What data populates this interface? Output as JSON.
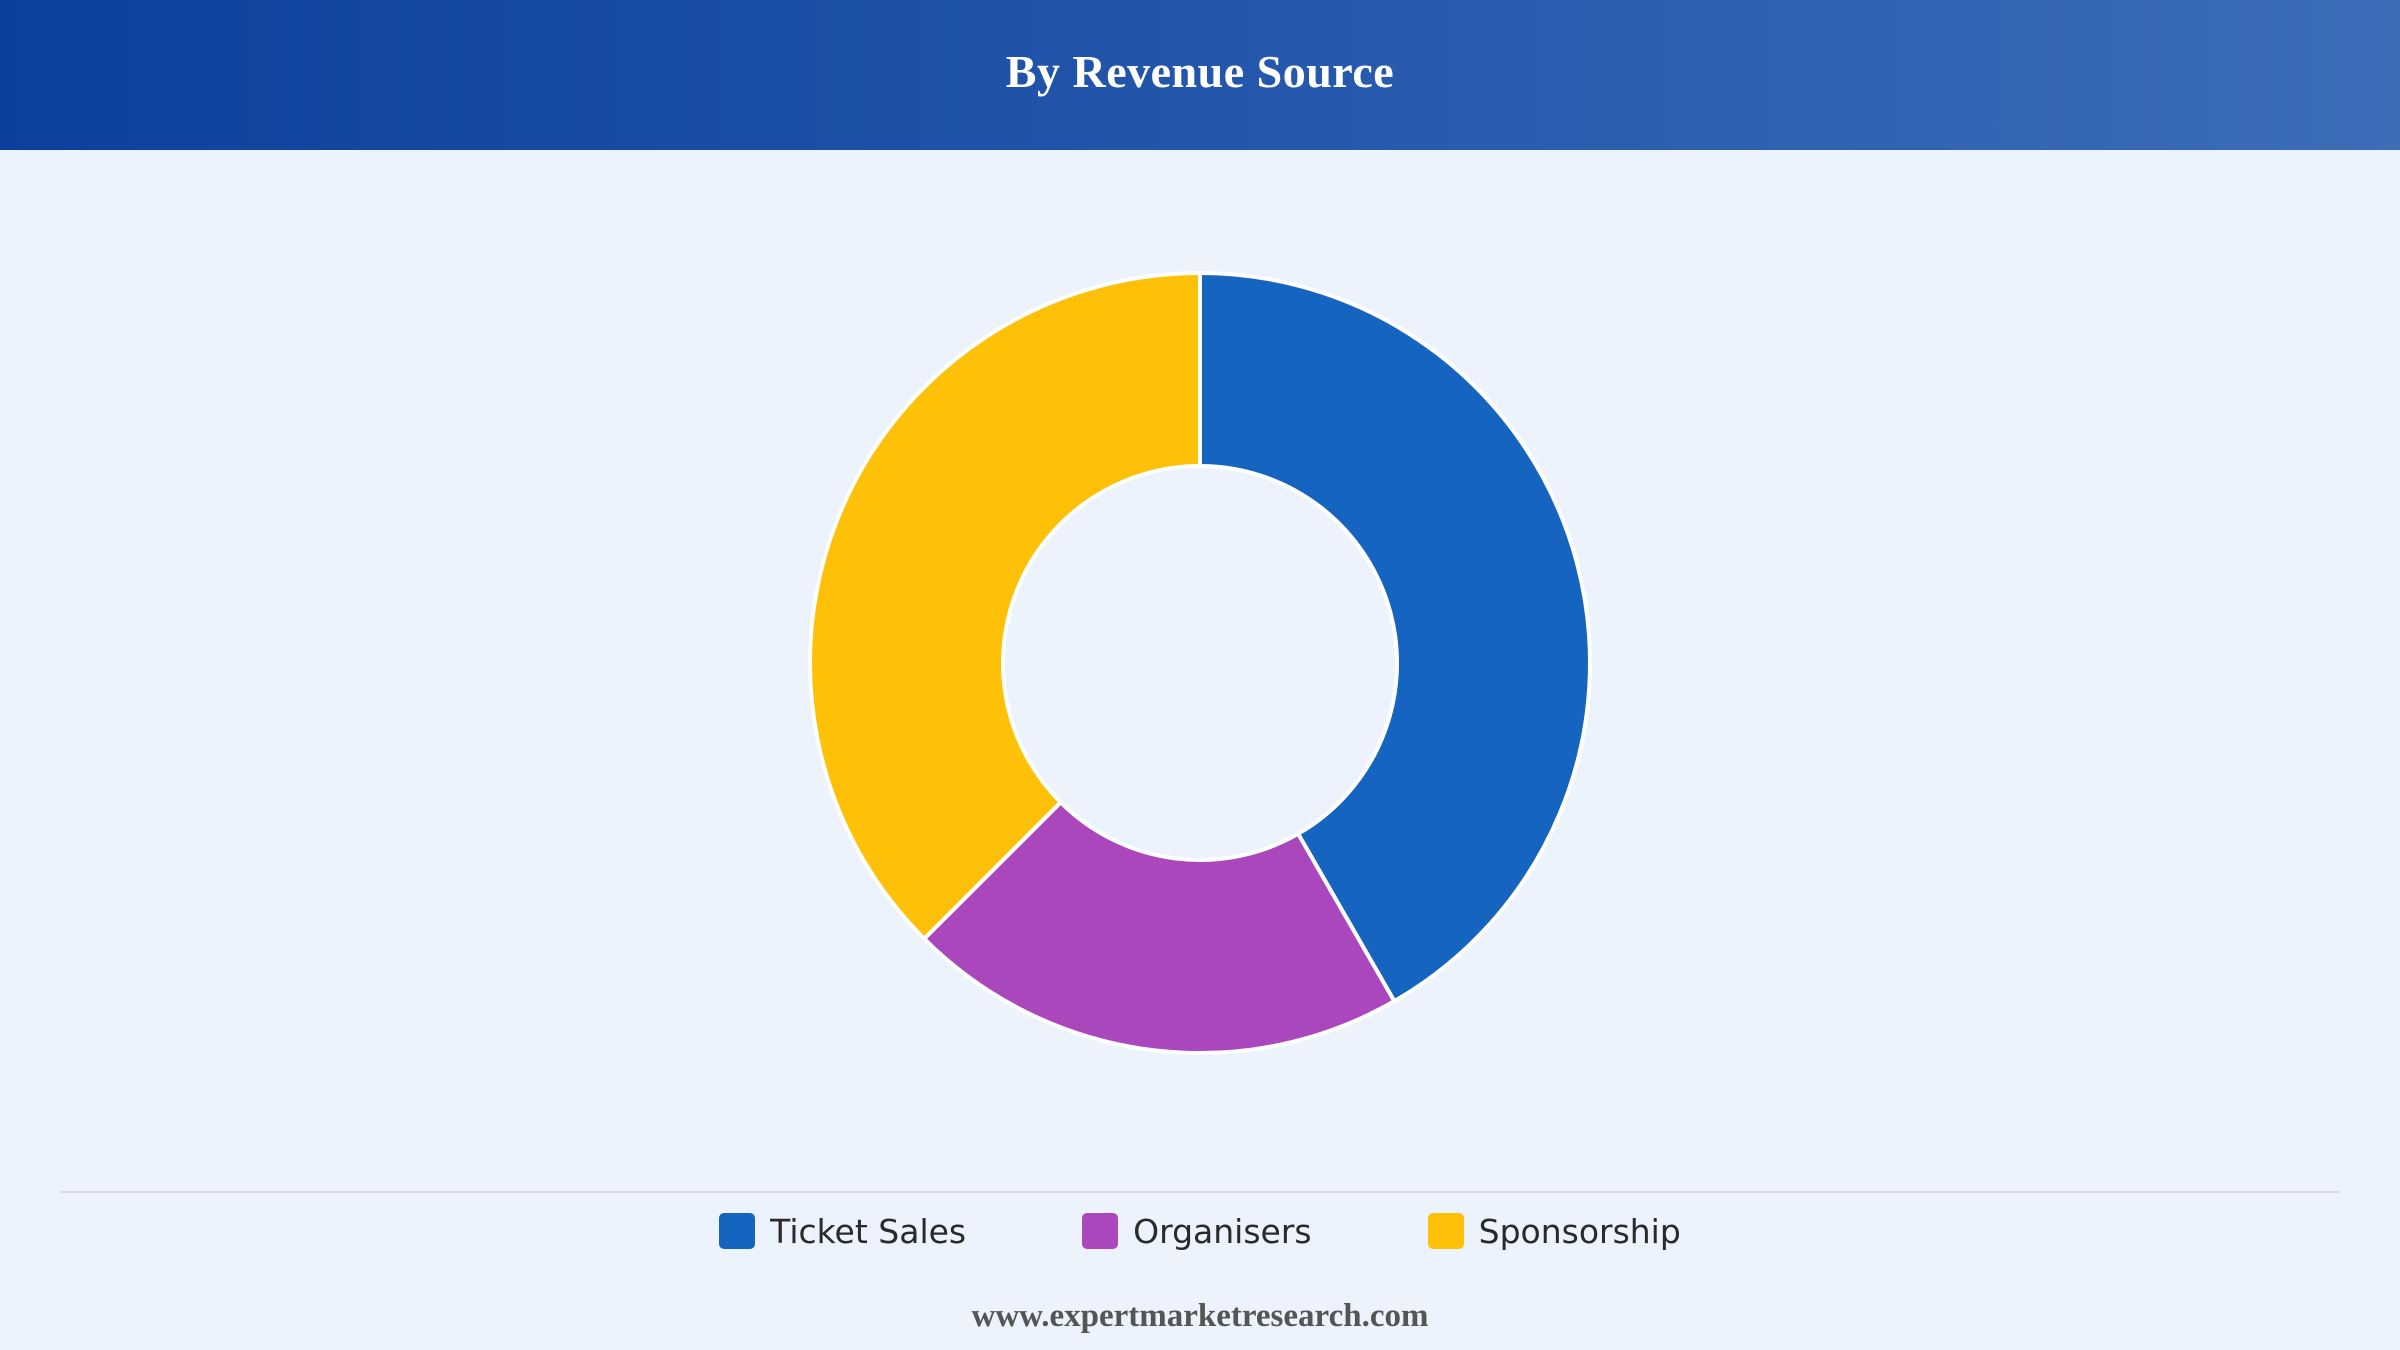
{
  "header": {
    "title": "By Revenue Source"
  },
  "chart_data": {
    "type": "pie",
    "donut": true,
    "categories": [
      "Ticket Sales",
      "Organisers",
      "Sponsorship"
    ],
    "values": [
      41.7,
      20.8,
      37.5
    ],
    "colors": [
      "#1565c0",
      "#ab47bc",
      "#ffc107"
    ],
    "legend_position": "bottom",
    "start_angle": "top",
    "direction": "clockwise"
  },
  "footer": {
    "source": "www.expertmarketresearch.com"
  }
}
